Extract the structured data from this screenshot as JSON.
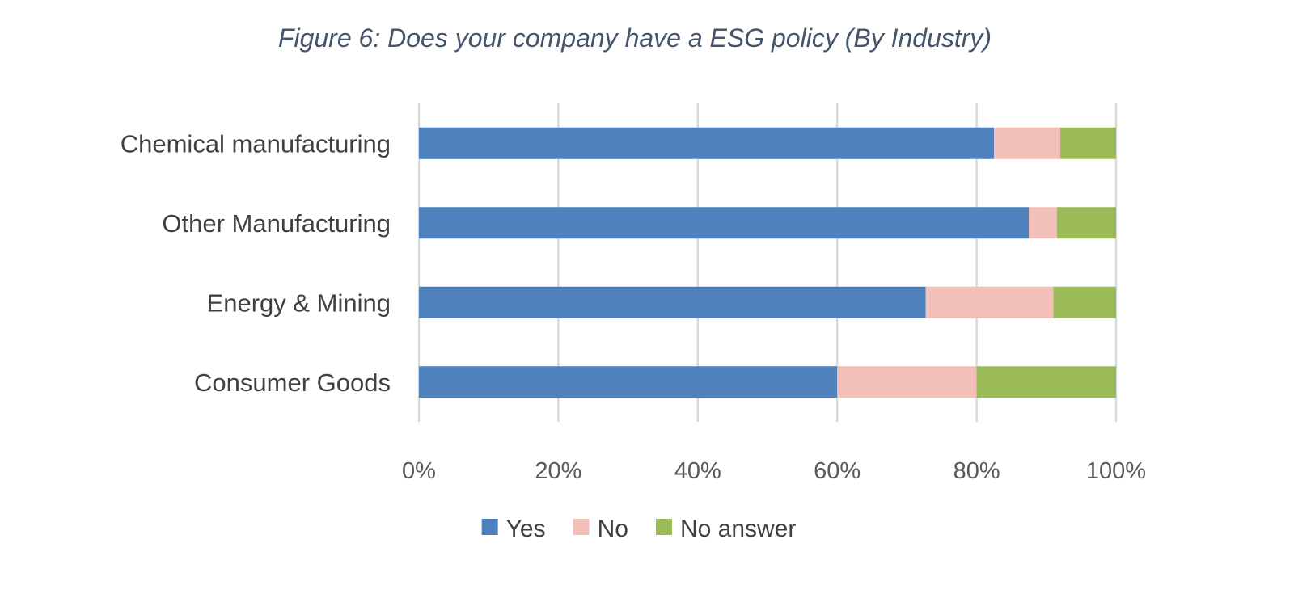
{
  "chart_data": {
    "type": "bar",
    "orientation": "horizontal",
    "stacked": "percent",
    "title": "Figure 6: Does your company have a ESG policy (By Industry)",
    "categories": [
      "Chemical manufacturing",
      "Other Manufacturing",
      "Energy & Mining",
      "Consumer Goods"
    ],
    "series": [
      {
        "name": "Yes",
        "color": "#4F81BD",
        "values": [
          82.5,
          87.5,
          72.7,
          60
        ]
      },
      {
        "name": "No",
        "color": "#F2BFB9",
        "values": [
          9.5,
          4,
          18.3,
          20
        ]
      },
      {
        "name": "No answer",
        "color": "#9BBB59",
        "values": [
          8,
          8.5,
          9,
          20
        ]
      }
    ],
    "xlim": [
      0,
      100
    ],
    "xticks": [
      "0%",
      "20%",
      "40%",
      "60%",
      "80%",
      "100%"
    ],
    "grid": true,
    "legend": "bottom"
  }
}
